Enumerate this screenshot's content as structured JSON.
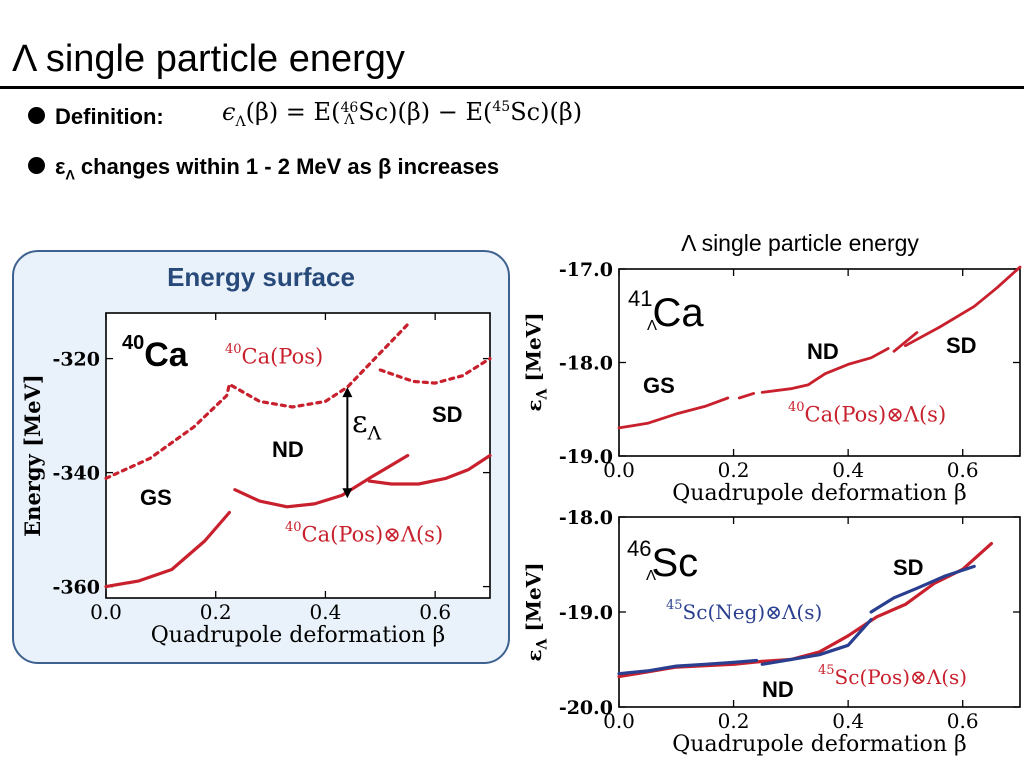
{
  "slide": {
    "title": "Λ single particle energy",
    "bullet1_label": "Definition:",
    "formula": {
      "lhs": "ϵ",
      "lhs_sub": "Λ",
      "lhs_arg": "(β) = E(",
      "sup1": "46",
      "sub1": "Λ",
      "nuc1": "Sc",
      "mid": ")(β) − E(",
      "sup2": "45",
      "nuc2": "Sc",
      "end": ")(β)"
    },
    "bullet2_eps": "ε",
    "bullet2_sub": "Λ",
    "bullet2_text": " changes within 1 - 2 MeV as β increases",
    "panel_title": "Energy surface",
    "right_title": "Λ single particle energy"
  },
  "colors": {
    "red": "#c8202c",
    "blue": "#2a3f8f",
    "panel_border": "#3e6290",
    "panel_fill": "#e9f2fa"
  },
  "chart_data": [
    {
      "type": "line",
      "title": "",
      "xlabel": "Quadrupole deformation β",
      "ylabel": "Energy [MeV]",
      "xlim": [
        0.0,
        0.7
      ],
      "ylim": [
        -362,
        -312
      ],
      "xticks": [
        0.0,
        0.2,
        0.4,
        0.6
      ],
      "xtick_labels": [
        "0.0",
        "0.2",
        "0.4",
        "0.6"
      ],
      "yticks": [
        -320,
        -340,
        -360
      ],
      "ytick_labels": [
        "-320",
        "-340",
        "-360"
      ],
      "series": [
        {
          "name": "40Ca(Pos)",
          "style": "dotted",
          "color": "#c8202c",
          "points": [
            [
              0.0,
              -341
            ],
            [
              0.08,
              -337.5
            ],
            [
              0.16,
              -332
            ],
            [
              0.22,
              -326.5
            ],
            [
              0.225,
              -324.5
            ],
            [
              0.28,
              -327.5
            ],
            [
              0.34,
              -328.5
            ],
            [
              0.4,
              -327.5
            ],
            [
              0.44,
              -325
            ],
            [
              0.48,
              -321
            ],
            [
              0.52,
              -317
            ],
            [
              0.55,
              -314
            ]
          ]
        },
        {
          "name": "40Ca(Pos) upper-right",
          "style": "dotted",
          "color": "#c8202c",
          "points": [
            [
              0.5,
              -322
            ],
            [
              0.56,
              -324
            ],
            [
              0.6,
              -324.3
            ],
            [
              0.65,
              -323
            ],
            [
              0.7,
              -320
            ]
          ]
        },
        {
          "name": "40Ca(Pos)⊗Λ(s)",
          "style": "solid",
          "color": "#c8202c",
          "points": [
            [
              0.0,
              -360
            ],
            [
              0.06,
              -359
            ],
            [
              0.12,
              -357
            ],
            [
              0.18,
              -352
            ],
            [
              0.225,
              -347
            ]
          ]
        },
        {
          "name": "40Ca(Pos)⊗Λ(s) ND",
          "style": "solid",
          "color": "#c8202c",
          "points": [
            [
              0.235,
              -343
            ],
            [
              0.28,
              -345
            ],
            [
              0.33,
              -346
            ],
            [
              0.38,
              -345.5
            ],
            [
              0.43,
              -344
            ],
            [
              0.48,
              -341
            ],
            [
              0.55,
              -337
            ]
          ]
        },
        {
          "name": "40Ca(Pos)⊗Λ(s) SD",
          "style": "solid",
          "color": "#c8202c",
          "points": [
            [
              0.48,
              -341.5
            ],
            [
              0.52,
              -342
            ],
            [
              0.57,
              -342
            ],
            [
              0.62,
              -341
            ],
            [
              0.66,
              -339.5
            ],
            [
              0.7,
              -337
            ]
          ]
        }
      ],
      "annotations": {
        "nucleus_sup": "40",
        "nucleus": "Ca",
        "gs": "GS",
        "nd": "ND",
        "sd": "SD",
        "eps": "ε",
        "eps_sub": "Λ",
        "pos_sup": "40",
        "pos_label": "Ca(Pos)",
        "ls_sup": "40",
        "ls_label": "Ca(Pos)⊗Λ(s)",
        "eps_arrow_x": 0.44,
        "eps_arrow_from": -325,
        "eps_arrow_to": -344.5
      }
    },
    {
      "type": "line",
      "title": "Λ single particle energy",
      "xlabel": "Quadrupole deformation β",
      "ylabel": "εΛ [MeV]",
      "xlim": [
        0.0,
        0.7
      ],
      "ylim": [
        -19.0,
        -17.0
      ],
      "xticks": [
        0.0,
        0.2,
        0.4,
        0.6
      ],
      "xtick_labels": [
        "0.0",
        "0.2",
        "0.4",
        "0.6"
      ],
      "yticks": [
        -17.0,
        -18.0,
        -19.0
      ],
      "ytick_labels": [
        "-17.0",
        "-18.0",
        "-19.0"
      ],
      "series": [
        {
          "name": "40Ca(Pos)⊗Λ(s)",
          "color": "#c8202c",
          "points": [
            [
              0.0,
              -18.7
            ],
            [
              0.05,
              -18.65
            ],
            [
              0.1,
              -18.55
            ],
            [
              0.15,
              -18.47
            ],
            [
              0.19,
              -18.38
            ]
          ]
        },
        {
          "name": "segment 2",
          "color": "#c8202c",
          "points": [
            [
              0.21,
              -18.38
            ],
            [
              0.235,
              -18.33
            ]
          ]
        },
        {
          "name": "segment 3",
          "color": "#c8202c",
          "points": [
            [
              0.25,
              -18.32
            ],
            [
              0.3,
              -18.28
            ],
            [
              0.33,
              -18.24
            ],
            [
              0.36,
              -18.12
            ],
            [
              0.4,
              -18.02
            ],
            [
              0.44,
              -17.95
            ],
            [
              0.47,
              -17.85
            ]
          ]
        },
        {
          "name": "segment 4",
          "color": "#c8202c",
          "points": [
            [
              0.48,
              -17.88
            ],
            [
              0.52,
              -17.68
            ]
          ]
        },
        {
          "name": "segment 5",
          "color": "#c8202c",
          "points": [
            [
              0.5,
              -17.82
            ],
            [
              0.56,
              -17.62
            ],
            [
              0.62,
              -17.4
            ],
            [
              0.66,
              -17.2
            ],
            [
              0.7,
              -16.98
            ]
          ]
        }
      ],
      "annotations": {
        "nucleus_sup": "41",
        "nucleus_sub": "Λ",
        "nucleus": "Ca",
        "gs": "GS",
        "nd": "ND",
        "sd": "SD",
        "ls_sup": "40",
        "ls_label": "Ca(Pos)⊗Λ(s)"
      }
    },
    {
      "type": "line",
      "title": "",
      "xlabel": "Quadrupole deformation β",
      "ylabel": "εΛ [MeV]",
      "xlim": [
        0.0,
        0.7
      ],
      "ylim": [
        -20.0,
        -18.0
      ],
      "xticks": [
        0.0,
        0.2,
        0.4,
        0.6
      ],
      "xtick_labels": [
        "0.0",
        "0.2",
        "0.4",
        "0.6"
      ],
      "yticks": [
        -18.0,
        -19.0,
        -20.0
      ],
      "ytick_labels": [
        "-18.0",
        "-19.0",
        "-20.0"
      ],
      "series": [
        {
          "name": "45Sc(Pos)⊗Λ(s)",
          "color": "#c8202c",
          "points": [
            [
              0.0,
              -19.68
            ],
            [
              0.1,
              -19.58
            ],
            [
              0.2,
              -19.55
            ],
            [
              0.25,
              -19.52
            ],
            [
              0.3,
              -19.5
            ],
            [
              0.35,
              -19.42
            ],
            [
              0.4,
              -19.25
            ],
            [
              0.45,
              -19.05
            ],
            [
              0.5,
              -18.92
            ],
            [
              0.55,
              -18.7
            ],
            [
              0.6,
              -18.55
            ],
            [
              0.65,
              -18.28
            ]
          ]
        },
        {
          "name": "45Sc(Neg)⊗Λ(s)",
          "color": "#2a3f8f",
          "points": [
            [
              0.0,
              -19.65
            ],
            [
              0.05,
              -19.62
            ],
            [
              0.1,
              -19.57
            ],
            [
              0.15,
              -19.55
            ],
            [
              0.2,
              -19.53
            ],
            [
              0.24,
              -19.51
            ]
          ]
        },
        {
          "name": "Neg segment 2",
          "color": "#2a3f8f",
          "points": [
            [
              0.25,
              -19.55
            ],
            [
              0.3,
              -19.5
            ],
            [
              0.35,
              -19.45
            ],
            [
              0.4,
              -19.35
            ],
            [
              0.44,
              -19.08
            ]
          ]
        },
        {
          "name": "Neg segment 3",
          "color": "#2a3f8f",
          "points": [
            [
              0.44,
              -19.0
            ],
            [
              0.48,
              -18.85
            ],
            [
              0.52,
              -18.75
            ],
            [
              0.57,
              -18.62
            ],
            [
              0.62,
              -18.52
            ]
          ]
        }
      ],
      "annotations": {
        "nucleus_sup": "46",
        "nucleus_sub": "Λ",
        "nucleus": "Sc",
        "nd": "ND",
        "sd": "SD",
        "neg_sup": "45",
        "neg_label": "Sc(Neg)⊗Λ(s)",
        "pos_sup": "45",
        "pos_label": "Sc(Pos)⊗Λ(s)"
      }
    }
  ]
}
